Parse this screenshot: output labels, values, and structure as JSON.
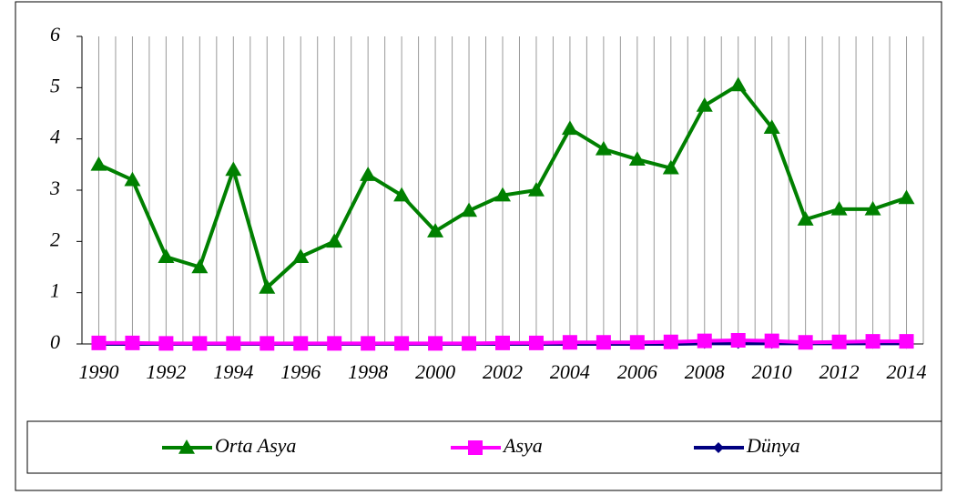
{
  "chart_data": {
    "type": "line",
    "categories": [
      "1990",
      null,
      "1992",
      null,
      "1994",
      null,
      "1996",
      null,
      "1998",
      null,
      "2000",
      null,
      "2002",
      null,
      "2004",
      null,
      "2006",
      null,
      "2008",
      null,
      "2010",
      null,
      "2012",
      null,
      "2014"
    ],
    "series": [
      {
        "name": "Orta Asya",
        "color": "#008000",
        "marker": "triangle",
        "values": [
          3.5,
          3.2,
          1.7,
          1.5,
          3.4,
          1.1,
          1.7,
          2.0,
          3.3,
          2.9,
          2.2,
          2.6,
          2.9,
          3.0,
          4.2,
          3.8,
          3.6,
          3.43,
          4.65,
          5.05,
          4.22,
          2.43,
          2.63,
          2.63,
          2.85
        ]
      },
      {
        "name": "Asya",
        "color": "#ff00ff",
        "marker": "square",
        "values": [
          0.02,
          0.02,
          0.01,
          0.01,
          0.01,
          0.01,
          0.01,
          0.01,
          0.01,
          0.01,
          0.01,
          0.01,
          0.02,
          0.02,
          0.03,
          0.03,
          0.03,
          0.04,
          0.06,
          0.07,
          0.06,
          0.03,
          0.04,
          0.05,
          0.05
        ]
      },
      {
        "name": "Dünya",
        "color": "#000080",
        "marker": "diamond",
        "values": [
          0,
          0,
          0,
          0,
          0,
          0,
          0,
          0,
          0,
          0,
          0,
          0,
          0,
          0,
          0,
          0,
          0,
          0,
          0.01,
          0.01,
          0.01,
          0.01,
          0.01,
          0.01,
          0.01
        ]
      }
    ],
    "ylim": [
      0,
      6
    ],
    "yticks": [
      0,
      1,
      2,
      3,
      4,
      5,
      6
    ],
    "grid": true,
    "legend": "bottom"
  }
}
